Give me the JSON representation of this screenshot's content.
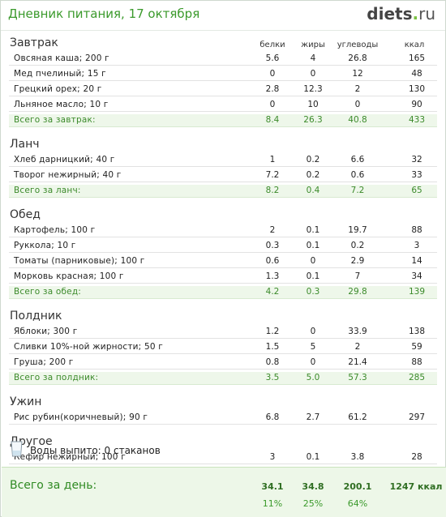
{
  "header": {
    "title": "Дневник питания, 17 октября",
    "logo_main": "diets",
    "logo_dot": ".",
    "logo_tld": "ru"
  },
  "columns": {
    "protein": "белки",
    "fat": "жиры",
    "carbs": "углеводы",
    "kcal": "ккал"
  },
  "meals": [
    {
      "title": "Завтрак",
      "items": [
        {
          "name": "Овсяная каша; 200 г",
          "protein": "5.6",
          "fat": "4",
          "carbs": "26.8",
          "kcal": "165"
        },
        {
          "name": "Мед пчелиный; 15 г",
          "protein": "0",
          "fat": "0",
          "carbs": "12",
          "kcal": "48"
        },
        {
          "name": "Грецкий орех; 20 г",
          "protein": "2.8",
          "fat": "12.3",
          "carbs": "2",
          "kcal": "130"
        },
        {
          "name": "Льняное масло; 10 г",
          "protein": "0",
          "fat": "10",
          "carbs": "0",
          "kcal": "90"
        }
      ],
      "total": {
        "name": "Всего за завтрак:",
        "protein": "8.4",
        "fat": "26.3",
        "carbs": "40.8",
        "kcal": "433"
      }
    },
    {
      "title": "Ланч",
      "items": [
        {
          "name": "Хлеб дарницкий; 40 г",
          "protein": "1",
          "fat": "0.2",
          "carbs": "6.6",
          "kcal": "32"
        },
        {
          "name": "Творог нежирный; 40 г",
          "protein": "7.2",
          "fat": "0.2",
          "carbs": "0.6",
          "kcal": "33"
        }
      ],
      "total": {
        "name": "Всего за ланч:",
        "protein": "8.2",
        "fat": "0.4",
        "carbs": "7.2",
        "kcal": "65"
      }
    },
    {
      "title": "Обед",
      "items": [
        {
          "name": "Картофель; 100 г",
          "protein": "2",
          "fat": "0.1",
          "carbs": "19.7",
          "kcal": "88"
        },
        {
          "name": "Руккола; 10 г",
          "protein": "0.3",
          "fat": "0.1",
          "carbs": "0.2",
          "kcal": "3"
        },
        {
          "name": "Томаты (парниковые); 100 г",
          "protein": "0.6",
          "fat": "0",
          "carbs": "2.9",
          "kcal": "14"
        },
        {
          "name": "Морковь красная; 100 г",
          "protein": "1.3",
          "fat": "0.1",
          "carbs": "7",
          "kcal": "34"
        }
      ],
      "total": {
        "name": "Всего за обед:",
        "protein": "4.2",
        "fat": "0.3",
        "carbs": "29.8",
        "kcal": "139"
      }
    },
    {
      "title": "Полдник",
      "items": [
        {
          "name": "Яблоки; 300 г",
          "protein": "1.2",
          "fat": "0",
          "carbs": "33.9",
          "kcal": "138"
        },
        {
          "name": "Сливки 10%-ной жирности; 50 г",
          "protein": "1.5",
          "fat": "5",
          "carbs": "2",
          "kcal": "59"
        },
        {
          "name": "Груша; 200 г",
          "protein": "0.8",
          "fat": "0",
          "carbs": "21.4",
          "kcal": "88"
        }
      ],
      "total": {
        "name": "Всего за полдник:",
        "protein": "3.5",
        "fat": "5.0",
        "carbs": "57.3",
        "kcal": "285"
      }
    },
    {
      "title": "Ужин",
      "items": [
        {
          "name": "Рис рубин(коричневый); 90 г",
          "protein": "6.8",
          "fat": "2.7",
          "carbs": "61.2",
          "kcal": "297"
        }
      ]
    },
    {
      "title": "Другое",
      "items": [
        {
          "name": "Кефир нежирный; 100 г",
          "protein": "3",
          "fat": "0.1",
          "carbs": "3.8",
          "kcal": "28"
        }
      ]
    }
  ],
  "water": {
    "icon": "water-glass-icon",
    "text": "Воды выпито: 0 стаканов"
  },
  "day_total": {
    "label": "Всего за день:",
    "protein": "34.1",
    "fat": "34.8",
    "carbs": "200.1",
    "kcal": "1247 ккал",
    "protein_pct": "11%",
    "fat_pct": "25%",
    "carbs_pct": "64%"
  },
  "colors": {
    "accent_green": "#3b9a2c",
    "total_row_bg": "#eef7ea",
    "day_box_bg": "#edf7e8"
  }
}
